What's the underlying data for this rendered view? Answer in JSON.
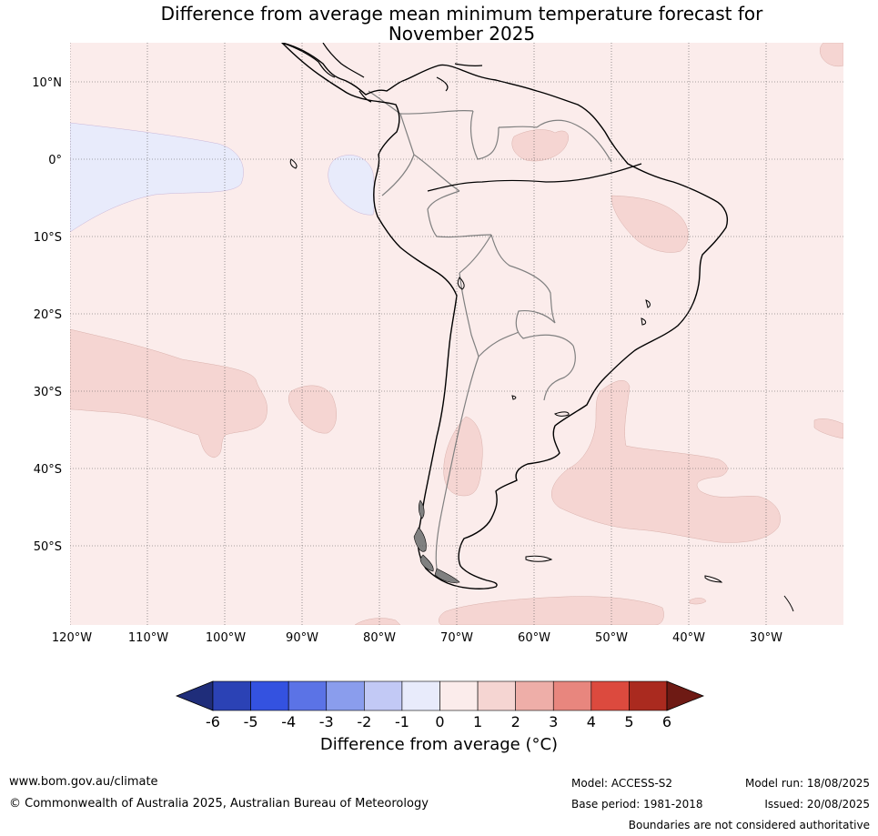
{
  "title_line1": "Difference from average mean minimum temperature forecast for",
  "title_line2": "November 2025",
  "map": {
    "lat_labels": [
      "10°N",
      "0°",
      "10°S",
      "20°S",
      "30°S",
      "40°S",
      "50°S"
    ],
    "lon_labels": [
      "120°W",
      "110°W",
      "100°W",
      "90°W",
      "80°W",
      "70°W",
      "60°W",
      "50°W",
      "40°W",
      "30°W"
    ]
  },
  "colorbar": {
    "ticks": [
      "-6",
      "-5",
      "-4",
      "-3",
      "-2",
      "-1",
      "0",
      "1",
      "2",
      "3",
      "4",
      "5",
      "6"
    ],
    "colors": [
      "#1f2d7a",
      "#2b42b5",
      "#3452e0",
      "#5b73e6",
      "#8a9ded",
      "#c2c9f5",
      "#e8ebfb",
      "#fbeceb",
      "#f5d5d2",
      "#eeaea8",
      "#e8867e",
      "#dc4a3e",
      "#aa2a1f",
      "#6e1a14"
    ],
    "title": "Difference from average (°C)"
  },
  "footer": {
    "website": "www.bom.gov.au/climate",
    "copyright": "© Commonwealth of Australia 2025, Australian Bureau of Meteorology",
    "model": "Model: ACCESS-S2",
    "base_period": "Base period: 1981-2018",
    "model_run": "Model run: 18/08/2025",
    "issued": "Issued: 20/08/2025",
    "disclaimer": "Boundaries are not considered authoritative"
  }
}
